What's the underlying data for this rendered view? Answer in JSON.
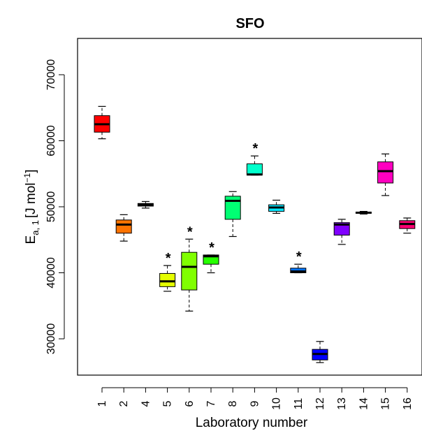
{
  "chart_data": {
    "type": "boxplot",
    "title": "SFO",
    "xlabel": "Laboratory number",
    "ylabel": {
      "main": "E",
      "sub": "a, 1",
      "unit_prefix": "[J mol",
      "unit_sup": "−1",
      "unit_suffix": "]"
    },
    "ylim": [
      24500,
      75500
    ],
    "yticks": [
      30000,
      40000,
      50000,
      60000,
      70000
    ],
    "ytick_labels": [
      "30000",
      "40000",
      "50000",
      "60000",
      "70000"
    ],
    "outlier_marker": "*",
    "boxes": [
      {
        "label": "1",
        "color": "#ff0000",
        "min": 60300,
        "q1": 61300,
        "median": 62500,
        "q3": 63800,
        "max": 65200,
        "star": false
      },
      {
        "label": "2",
        "color": "#ff7300",
        "min": 44800,
        "q1": 46000,
        "median": 47300,
        "q3": 48000,
        "max": 48800,
        "star": false
      },
      {
        "label": "4",
        "color": "#101010",
        "min": 49800,
        "q1": 50100,
        "median": 50300,
        "q3": 50500,
        "max": 50800,
        "star": false
      },
      {
        "label": "5",
        "color": "#e5ff00",
        "min": 37200,
        "q1": 37900,
        "median": 38700,
        "q3": 39900,
        "max": 41100,
        "star": true
      },
      {
        "label": "6",
        "color": "#80ff00",
        "min": 34200,
        "q1": 37400,
        "median": 40900,
        "q3": 43100,
        "max": 45100,
        "star": true
      },
      {
        "label": "7",
        "color": "#26ff00",
        "min": 40000,
        "q1": 41300,
        "median": 42500,
        "q3": 42700,
        "max": 42700,
        "star": true
      },
      {
        "label": "8",
        "color": "#00ff73",
        "min": 45500,
        "q1": 48100,
        "median": 50900,
        "q3": 51600,
        "max": 52300,
        "star": false
      },
      {
        "label": "9",
        "color": "#00ffcc",
        "min": 54800,
        "q1": 54800,
        "median": 54900,
        "q3": 56500,
        "max": 57700,
        "star": true
      },
      {
        "label": "10",
        "color": "#00e6ff",
        "min": 49000,
        "q1": 49300,
        "median": 49900,
        "q3": 50300,
        "max": 51000,
        "star": false
      },
      {
        "label": "11",
        "color": "#0073ff",
        "min": 40000,
        "q1": 40000,
        "median": 40200,
        "q3": 40700,
        "max": 41300,
        "star": true
      },
      {
        "label": "12",
        "color": "#0000ff",
        "min": 26400,
        "q1": 26800,
        "median": 27700,
        "q3": 28400,
        "max": 29600,
        "star": false
      },
      {
        "label": "13",
        "color": "#8000ff",
        "min": 44300,
        "q1": 45700,
        "median": 47300,
        "q3": 47600,
        "max": 48100,
        "star": false
      },
      {
        "label": "14",
        "color": "#101010",
        "min": 48900,
        "q1": 49000,
        "median": 49100,
        "q3": 49200,
        "max": 49300,
        "star": false
      },
      {
        "label": "15",
        "color": "#ff00c0",
        "min": 51700,
        "q1": 53600,
        "median": 55400,
        "q3": 56800,
        "max": 58000,
        "star": false
      },
      {
        "label": "16",
        "color": "#ff0073",
        "min": 46000,
        "q1": 46700,
        "median": 47400,
        "q3": 47900,
        "max": 48300,
        "star": false
      }
    ]
  }
}
